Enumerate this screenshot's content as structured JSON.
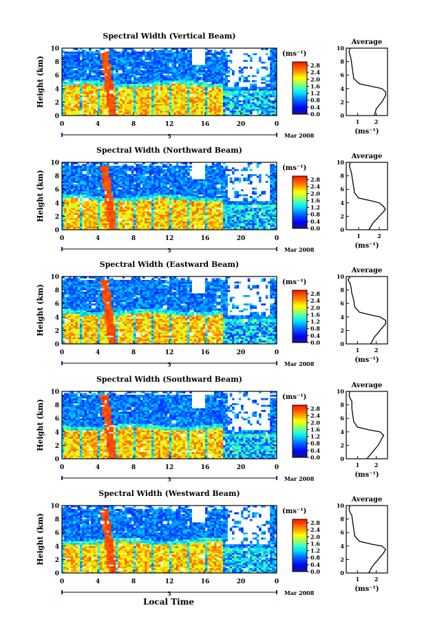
{
  "figure": {
    "bottom_xlabel": "Local Time",
    "date_label": "Mar 2008",
    "date_day": "5",
    "colorbar_unit": "(ms⁻¹)",
    "colorbar_ticks": [
      "2.8",
      "2.4",
      "2.0",
      "1.6",
      "1.2",
      "0.8",
      "0.4",
      "0.0"
    ],
    "avg_title": "Average",
    "avg_xlabel": "(ms⁻¹)",
    "ylabel": "Height (km)"
  },
  "chart_data": [
    {
      "type": "heatmap",
      "title": "Spectral Width (Vertical Beam)",
      "xlabel": "",
      "ylabel": "Height (km)",
      "xlim": [
        0,
        24
      ],
      "ylim": [
        0,
        10
      ],
      "xticks": [
        "0",
        "4",
        "8",
        "12",
        "16",
        "20",
        "0"
      ],
      "yticks": [
        "0",
        "2",
        "4",
        "6",
        "8",
        "10"
      ],
      "colorbar": {
        "label": "(ms⁻¹)",
        "range": [
          0.0,
          3.0
        ],
        "ticks": [
          0.0,
          0.4,
          0.8,
          1.2,
          1.6,
          2.0,
          2.4,
          2.8
        ]
      },
      "average_profile": {
        "title": "Average",
        "xlabel": "(ms⁻¹)",
        "xlim": [
          0.4,
          2.6
        ],
        "xticks": [
          "1",
          "2"
        ],
        "height_km": [
          0,
          1,
          2,
          3,
          3.5,
          4,
          4.3,
          4.7,
          5.5,
          6.5,
          7.5,
          8.5,
          9,
          9.5,
          10
        ],
        "width_ms": [
          1.9,
          2.0,
          2.3,
          2.5,
          2.5,
          2.3,
          1.8,
          1.1,
          0.8,
          0.75,
          0.7,
          0.65,
          0.6,
          0.55,
          0.6
        ]
      }
    },
    {
      "type": "heatmap",
      "title": "Spectral Width (Northward Beam)",
      "xlabel": "",
      "ylabel": "Height (km)",
      "xlim": [
        0,
        24
      ],
      "ylim": [
        0,
        10
      ],
      "xticks": [
        "0",
        "4",
        "8",
        "12",
        "16",
        "20",
        "0"
      ],
      "yticks": [
        "0",
        "2",
        "4",
        "6",
        "8",
        "10"
      ],
      "colorbar": {
        "label": "(ms⁻¹)",
        "range": [
          0.0,
          3.0
        ],
        "ticks": [
          0.0,
          0.4,
          0.8,
          1.2,
          1.6,
          2.0,
          2.4,
          2.8
        ]
      },
      "average_profile": {
        "title": "Average",
        "xlabel": "(ms⁻¹)",
        "xlim": [
          0.4,
          2.4
        ],
        "xticks": [
          "1",
          "2"
        ],
        "height_km": [
          0,
          1,
          2,
          3,
          3.5,
          4,
          4.3,
          4.7,
          5.5,
          6.5,
          7.5,
          8.5,
          9,
          9.5,
          10
        ],
        "width_ms": [
          1.5,
          1.7,
          2.0,
          2.3,
          2.2,
          2.0,
          1.6,
          1.0,
          0.8,
          0.75,
          0.7,
          0.65,
          0.6,
          0.55,
          0.6
        ]
      }
    },
    {
      "type": "heatmap",
      "title": "Spectral Width (Eastward Beam)",
      "xlabel": "",
      "ylabel": "Height (km)",
      "xlim": [
        0,
        24
      ],
      "ylim": [
        0,
        10
      ],
      "xticks": [
        "0",
        "4",
        "8",
        "12",
        "16",
        "20",
        "0"
      ],
      "yticks": [
        "0",
        "2",
        "4",
        "6",
        "8",
        "10"
      ],
      "colorbar": {
        "label": "(ms⁻¹)",
        "range": [
          0.0,
          3.0
        ],
        "ticks": [
          0.0,
          0.4,
          0.8,
          1.2,
          1.6,
          2.0,
          2.4,
          2.8
        ]
      },
      "average_profile": {
        "title": "Average",
        "xlabel": "(ms⁻¹)",
        "xlim": [
          0.4,
          2.6
        ],
        "xticks": [
          "1",
          "2"
        ],
        "height_km": [
          0,
          1,
          2,
          3,
          3.5,
          4,
          4.3,
          4.7,
          5.5,
          6.5,
          7.5,
          8.5,
          9,
          9.5,
          10
        ],
        "width_ms": [
          1.7,
          1.9,
          2.2,
          2.5,
          2.5,
          2.2,
          1.7,
          1.1,
          0.85,
          0.8,
          0.7,
          0.65,
          0.6,
          0.5,
          0.6
        ]
      }
    },
    {
      "type": "heatmap",
      "title": "Spectral Width (Southward Beam)",
      "xlabel": "",
      "ylabel": "Height (km)",
      "xlim": [
        0,
        24
      ],
      "ylim": [
        0,
        10
      ],
      "xticks": [
        "0",
        "4",
        "8",
        "12",
        "16",
        "20",
        "0"
      ],
      "yticks": [
        "0",
        "2",
        "4",
        "6",
        "8",
        "10"
      ],
      "colorbar": {
        "label": "(ms⁻¹)",
        "range": [
          0.0,
          3.0
        ],
        "ticks": [
          0.0,
          0.4,
          0.8,
          1.2,
          1.6,
          2.0,
          2.4,
          2.8
        ]
      },
      "average_profile": {
        "title": "Average",
        "xlabel": "(ms⁻¹)",
        "xlim": [
          0.4,
          2.6
        ],
        "xticks": [
          "1",
          "2"
        ],
        "height_km": [
          0,
          1,
          2,
          3,
          3.5,
          4,
          4.3,
          4.7,
          5.5,
          6.5,
          7.5,
          8.5,
          9,
          9.5,
          10
        ],
        "width_ms": [
          1.5,
          1.8,
          2.1,
          2.3,
          2.4,
          2.2,
          1.6,
          1.0,
          0.8,
          0.75,
          0.7,
          0.7,
          0.6,
          0.55,
          0.6
        ]
      }
    },
    {
      "type": "heatmap",
      "title": "Spectral Width (Westward Beam)",
      "xlabel": "Local Time",
      "ylabel": "Height (km)",
      "xlim": [
        0,
        24
      ],
      "ylim": [
        0,
        10
      ],
      "xticks": [
        "0",
        "4",
        "8",
        "12",
        "16",
        "20",
        "0"
      ],
      "yticks": [
        "0",
        "2",
        "4",
        "6",
        "8",
        "10"
      ],
      "colorbar": {
        "label": "(ms⁻¹)",
        "range": [
          0.0,
          3.0
        ],
        "ticks": [
          0.0,
          0.4,
          0.8,
          1.2,
          1.6,
          2.0,
          2.4,
          2.8
        ]
      },
      "average_profile": {
        "title": "Average",
        "xlabel": "(ms⁻¹)",
        "xlim": [
          0.4,
          2.6
        ],
        "xticks": [
          "1",
          "2"
        ],
        "height_km": [
          0,
          1,
          2,
          3,
          3.5,
          4,
          4.3,
          4.7,
          5.5,
          6.5,
          7.5,
          8.5,
          9,
          9.5,
          10
        ],
        "width_ms": [
          1.6,
          1.8,
          2.1,
          2.4,
          2.5,
          2.3,
          1.7,
          1.1,
          0.85,
          0.8,
          0.75,
          0.7,
          0.6,
          0.55,
          0.6
        ]
      }
    }
  ]
}
